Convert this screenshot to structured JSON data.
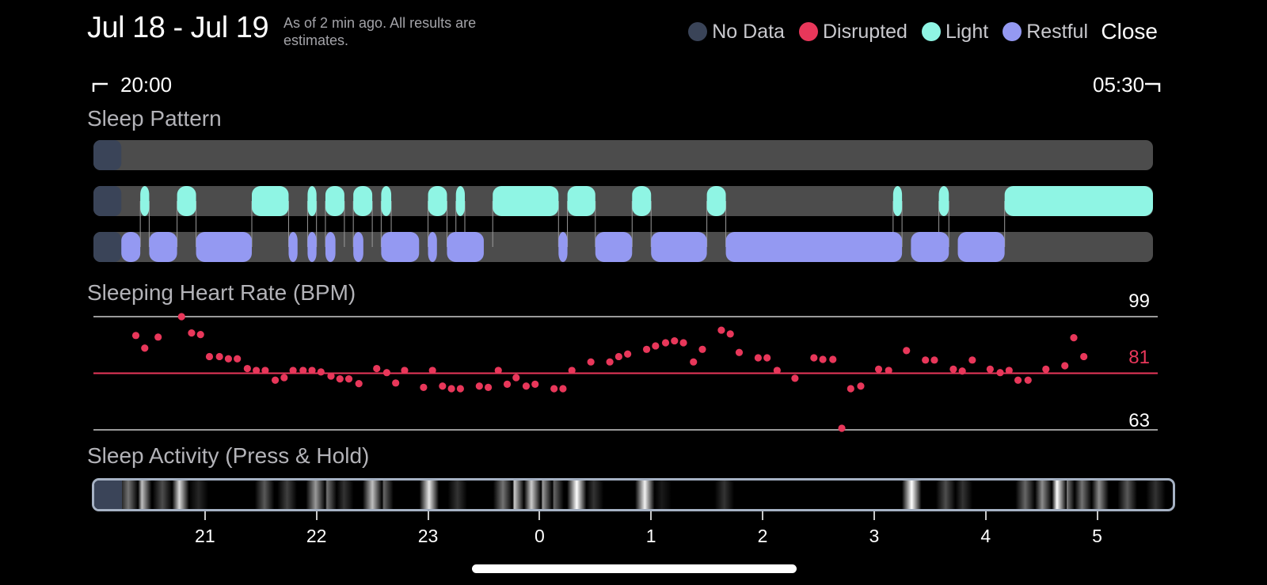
{
  "header": {
    "date_range": "Jul 18 - Jul 19",
    "status_note": "As of 2 min ago. All results are estimates.",
    "close_label": "Close"
  },
  "legend": [
    {
      "label": "No Data",
      "color": "#3a4458"
    },
    {
      "label": "Disrupted",
      "color": "#e8375a"
    },
    {
      "label": "Light",
      "color": "#8ff5e4"
    },
    {
      "label": "Restful",
      "color": "#9499f2"
    }
  ],
  "time_range": {
    "start": "20:00",
    "end": "05:30"
  },
  "sleep_pattern": {
    "title": "Sleep Pattern",
    "start_hour": 20.0,
    "end_hour": 29.5,
    "no_data_end_hour": 20.25,
    "light": [
      [
        20.42,
        20.5
      ],
      [
        20.75,
        20.92
      ],
      [
        21.42,
        21.75
      ],
      [
        21.92,
        22.0
      ],
      [
        22.08,
        22.25
      ],
      [
        22.33,
        22.5
      ],
      [
        22.58,
        22.67
      ],
      [
        23.0,
        23.17
      ],
      [
        23.25,
        23.33
      ],
      [
        23.58,
        24.17
      ],
      [
        24.25,
        24.5
      ],
      [
        24.83,
        25.0
      ],
      [
        25.5,
        25.67
      ],
      [
        27.17,
        27.25
      ],
      [
        27.58,
        27.67
      ],
      [
        28.17,
        29.5
      ]
    ],
    "restful": [
      [
        20.25,
        20.42
      ],
      [
        20.5,
        20.75
      ],
      [
        20.92,
        21.42
      ],
      [
        21.75,
        21.83
      ],
      [
        21.92,
        22.0
      ],
      [
        22.08,
        22.17
      ],
      [
        22.33,
        22.42
      ],
      [
        22.58,
        22.92
      ],
      [
        23.0,
        23.08
      ],
      [
        23.17,
        23.5
      ],
      [
        24.17,
        24.25
      ],
      [
        24.5,
        24.83
      ],
      [
        25.0,
        25.5
      ],
      [
        25.67,
        27.25
      ],
      [
        27.33,
        27.67
      ],
      [
        27.75,
        28.17
      ]
    ],
    "colors": {
      "track": "#4c4c4c",
      "no_data": "#3a4458",
      "light": "#8ff5e4",
      "restful": "#9499f2"
    }
  },
  "heart_rate": {
    "title": "Sleeping Heart Rate (BPM)",
    "max_label": "99",
    "avg_label": "81",
    "min_label": "63",
    "max": 99,
    "avg": 81,
    "min": 63,
    "avg_color": "#e8375a",
    "point_color": "#e8375a",
    "readings": [
      [
        20.38,
        93
      ],
      [
        20.46,
        89
      ],
      [
        20.58,
        92.5
      ],
      [
        20.79,
        99
      ],
      [
        20.88,
        93.8
      ],
      [
        20.96,
        93.3
      ],
      [
        21.04,
        86.3
      ],
      [
        21.13,
        86.3
      ],
      [
        21.21,
        85.6
      ],
      [
        21.29,
        85.6
      ],
      [
        21.38,
        82.5
      ],
      [
        21.46,
        81.9
      ],
      [
        21.54,
        81.9
      ],
      [
        21.63,
        78.8
      ],
      [
        21.71,
        79.6
      ],
      [
        21.79,
        81.9
      ],
      [
        21.88,
        81.9
      ],
      [
        21.96,
        81.9
      ],
      [
        22.04,
        81.4
      ],
      [
        22.13,
        80.1
      ],
      [
        22.21,
        79.2
      ],
      [
        22.29,
        79.2
      ],
      [
        22.38,
        77.7
      ],
      [
        22.54,
        82.5
      ],
      [
        22.63,
        81.2
      ],
      [
        22.71,
        77.9
      ],
      [
        22.79,
        81.9
      ],
      [
        22.96,
        76.5
      ],
      [
        23.04,
        81.9
      ],
      [
        23.13,
        76.9
      ],
      [
        23.21,
        76.1
      ],
      [
        23.29,
        76.1
      ],
      [
        23.46,
        76.9
      ],
      [
        23.54,
        76.5
      ],
      [
        23.63,
        81.9
      ],
      [
        23.71,
        77.5
      ],
      [
        23.79,
        79.6
      ],
      [
        23.88,
        76.9
      ],
      [
        23.96,
        77.5
      ],
      [
        24.13,
        76.1
      ],
      [
        24.21,
        76.1
      ],
      [
        24.29,
        81.9
      ],
      [
        24.46,
        84.6
      ],
      [
        24.63,
        84.6
      ],
      [
        24.71,
        86.3
      ],
      [
        24.79,
        87.1
      ],
      [
        24.96,
        88.6
      ],
      [
        25.04,
        89.7
      ],
      [
        25.13,
        90.7
      ],
      [
        25.21,
        91.3
      ],
      [
        25.29,
        90.7
      ],
      [
        25.38,
        84.6
      ],
      [
        25.46,
        88.6
      ],
      [
        25.63,
        94.7
      ],
      [
        25.71,
        93.5
      ],
      [
        25.79,
        87.6
      ],
      [
        25.96,
        85.9
      ],
      [
        26.04,
        85.9
      ],
      [
        26.13,
        81.9
      ],
      [
        26.29,
        79.4
      ],
      [
        26.46,
        85.9
      ],
      [
        26.54,
        85.4
      ],
      [
        26.63,
        85.4
      ],
      [
        26.71,
        63.5
      ],
      [
        26.79,
        76.1
      ],
      [
        26.88,
        76.9
      ],
      [
        27.04,
        82.3
      ],
      [
        27.13,
        81.9
      ],
      [
        27.29,
        88.2
      ],
      [
        27.46,
        85.2
      ],
      [
        27.54,
        85.2
      ],
      [
        27.71,
        82.3
      ],
      [
        27.79,
        81.7
      ],
      [
        27.88,
        85.2
      ],
      [
        28.04,
        82.3
      ],
      [
        28.13,
        81.2
      ],
      [
        28.21,
        81.9
      ],
      [
        28.29,
        78.8
      ],
      [
        28.38,
        78.8
      ],
      [
        28.54,
        82.3
      ],
      [
        28.71,
        83.4
      ],
      [
        28.79,
        92.3
      ],
      [
        28.88,
        86.3
      ]
    ]
  },
  "sleep_activity": {
    "title": "Sleep Activity (Press & Hold)",
    "no_data_color": "#3a4458",
    "intensity": [
      [
        20.12,
        0.25
      ],
      [
        20.3,
        0.45
      ],
      [
        20.42,
        0.75
      ],
      [
        20.6,
        0.3
      ],
      [
        20.75,
        0.85
      ],
      [
        20.92,
        0.15
      ],
      [
        21.5,
        0.35
      ],
      [
        21.7,
        0.25
      ],
      [
        21.95,
        0.6
      ],
      [
        22.05,
        0.45
      ],
      [
        22.2,
        0.2
      ],
      [
        22.45,
        0.75
      ],
      [
        22.55,
        0.4
      ],
      [
        22.95,
        0.9
      ],
      [
        23.2,
        0.2
      ],
      [
        23.6,
        0.45
      ],
      [
        23.7,
        0.8
      ],
      [
        23.85,
        0.8
      ],
      [
        23.95,
        0.6
      ],
      [
        24.05,
        0.4
      ],
      [
        24.25,
        1.0
      ],
      [
        24.4,
        0.2
      ],
      [
        24.85,
        0.95
      ],
      [
        25.0,
        0.1
      ],
      [
        25.55,
        0.2
      ],
      [
        27.2,
        1.0
      ],
      [
        27.5,
        0.3
      ],
      [
        27.65,
        0.2
      ],
      [
        28.2,
        0.4
      ],
      [
        28.35,
        0.55
      ],
      [
        28.48,
        1.0
      ],
      [
        28.55,
        0.5
      ],
      [
        28.7,
        0.45
      ],
      [
        28.85,
        0.55
      ],
      [
        29.1,
        0.35
      ],
      [
        29.35,
        0.2
      ]
    ]
  },
  "hour_ticks": [
    "21",
    "22",
    "23",
    "0",
    "1",
    "2",
    "3",
    "4",
    "5"
  ]
}
